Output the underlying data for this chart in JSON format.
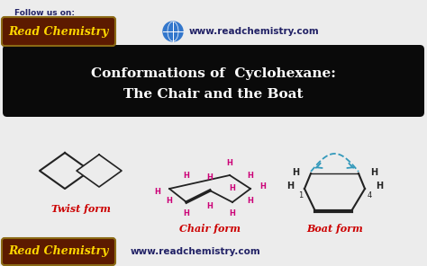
{
  "bg_color": "#ececec",
  "title_line1": "Conformations of  Cyclohexane:",
  "title_line2": "The Chair and the Boat",
  "title_bg": "#0a0a0a",
  "title_color": "#ffffff",
  "label_twist": "Twist form",
  "label_chair": "Chair form",
  "label_boat": "Boat form",
  "label_color": "#cc0000",
  "header_text1": "Follow us on:",
  "header_brand": "Read Chemistry",
  "header_url": "www.readchemistry.com",
  "footer_brand": "Read Chemistry",
  "footer_url": "www.readchemistry.com",
  "brand_bg": "#5c1a00",
  "brand_color": "#ffd700",
  "H_color": "#cc0077",
  "bond_color": "#222222",
  "boat_arc_color": "#3399bb",
  "globe_color": "#3377cc",
  "header_url_color": "#222266",
  "footer_url_color": "#222266"
}
